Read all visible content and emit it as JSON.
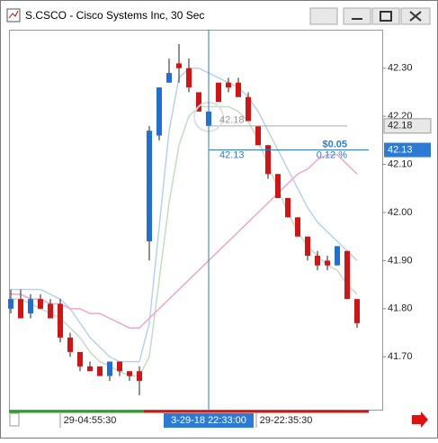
{
  "chart_data": {
    "type": "candlestick",
    "title": "S.CSCO - Cisco Systems Inc, 30 Sec",
    "open": [
      41.8,
      41.82,
      41.79,
      41.82,
      41.81,
      41.81,
      41.74,
      41.71,
      41.68,
      41.68,
      41.66,
      41.69,
      41.67,
      41.67,
      41.94,
      42.16,
      42.27,
      42.31,
      42.3,
      42.25,
      42.18,
      42.27,
      42.27,
      42.27,
      42.24,
      42.18,
      42.14,
      42.08,
      42.03,
      41.99,
      41.95,
      41.91,
      41.9,
      41.89,
      41.92,
      41.82
    ],
    "high": [
      41.84,
      41.84,
      41.83,
      41.83,
      41.82,
      41.82,
      41.75,
      41.71,
      41.69,
      41.68,
      41.69,
      41.69,
      41.67,
      41.68,
      42.18,
      42.26,
      42.32,
      42.35,
      42.32,
      42.25,
      42.21,
      42.27,
      42.28,
      42.28,
      42.25,
      42.18,
      42.14,
      42.08,
      42.03,
      41.99,
      41.95,
      41.92,
      41.91,
      41.93,
      41.92,
      41.82
    ],
    "low": [
      41.79,
      41.78,
      41.78,
      41.8,
      41.78,
      41.73,
      41.7,
      41.67,
      41.67,
      41.66,
      41.65,
      41.66,
      41.65,
      41.62,
      41.9,
      42.15,
      42.27,
      42.27,
      42.25,
      42.21,
      42.18,
      42.23,
      42.25,
      42.24,
      42.19,
      42.14,
      42.07,
      42.03,
      41.99,
      41.95,
      41.9,
      41.88,
      41.88,
      41.89,
      41.82,
      41.76
    ],
    "close": [
      41.82,
      41.78,
      41.82,
      41.8,
      41.78,
      41.74,
      41.71,
      41.68,
      41.67,
      41.66,
      41.69,
      41.67,
      41.66,
      41.65,
      42.17,
      42.26,
      42.29,
      42.3,
      42.26,
      42.21,
      42.21,
      42.23,
      42.26,
      42.24,
      42.19,
      42.14,
      42.08,
      42.03,
      41.99,
      41.95,
      41.91,
      41.89,
      41.89,
      41.93,
      41.82,
      41.77
    ],
    "up_color": "#1f6fd6",
    "down_color": "#d41414",
    "overlays": [
      {
        "color": "#b8d2ec",
        "values": [
          41.84,
          41.84,
          41.84,
          41.84,
          41.83,
          41.82,
          41.8,
          41.77,
          41.74,
          41.72,
          41.7,
          41.69,
          41.69,
          41.69,
          41.77,
          41.97,
          42.17,
          42.28,
          42.3,
          42.3,
          42.29,
          42.28,
          42.27,
          42.26,
          42.24,
          42.21,
          42.17,
          42.13,
          42.09,
          42.05,
          42.01,
          41.98,
          41.96,
          41.94,
          41.92,
          41.9
        ]
      },
      {
        "color": "#c4dcc4",
        "values": [
          41.82,
          41.82,
          41.81,
          41.8,
          41.79,
          41.78,
          41.76,
          41.74,
          41.71,
          41.69,
          41.68,
          41.67,
          41.66,
          41.66,
          41.7,
          41.86,
          42.02,
          42.14,
          42.2,
          42.22,
          42.22,
          42.22,
          42.22,
          42.21,
          42.19,
          42.15,
          42.1,
          42.05,
          42.0,
          41.96,
          41.93,
          41.91,
          41.89,
          41.88,
          41.85,
          41.83
        ]
      },
      {
        "color": "#f2a6c8",
        "values": [
          41.83,
          41.83,
          41.82,
          41.82,
          41.81,
          41.81,
          41.8,
          41.8,
          41.79,
          41.79,
          41.78,
          41.77,
          41.76,
          41.76,
          41.78,
          41.8,
          41.82,
          41.84,
          41.86,
          41.88,
          41.9,
          41.92,
          41.94,
          41.96,
          41.98,
          42.0,
          42.02,
          42.04,
          42.06,
          42.08,
          42.09,
          42.11,
          42.12,
          42.12,
          42.1,
          42.08
        ]
      }
    ],
    "ylim": [
      41.59,
      42.38
    ],
    "yticks": [
      {
        "value": 41.7,
        "label": "41.70"
      },
      {
        "value": 41.8,
        "label": "41.80"
      },
      {
        "value": 41.9,
        "label": "41.90"
      },
      {
        "value": 42.0,
        "label": "42.00"
      },
      {
        "value": 42.1,
        "label": "42.10"
      },
      {
        "value": 42.2,
        "label": "42.20"
      },
      {
        "value": 42.3,
        "label": "42.30"
      }
    ],
    "time_labels": [
      "29-04:55:30",
      "29-22:35:30"
    ],
    "reference": {
      "price": 42.18
    },
    "crosshair": {
      "price": 42.13,
      "change": "$0.05",
      "change_pct": "0.12 %",
      "time": "3-29-18 22:33:00"
    }
  }
}
